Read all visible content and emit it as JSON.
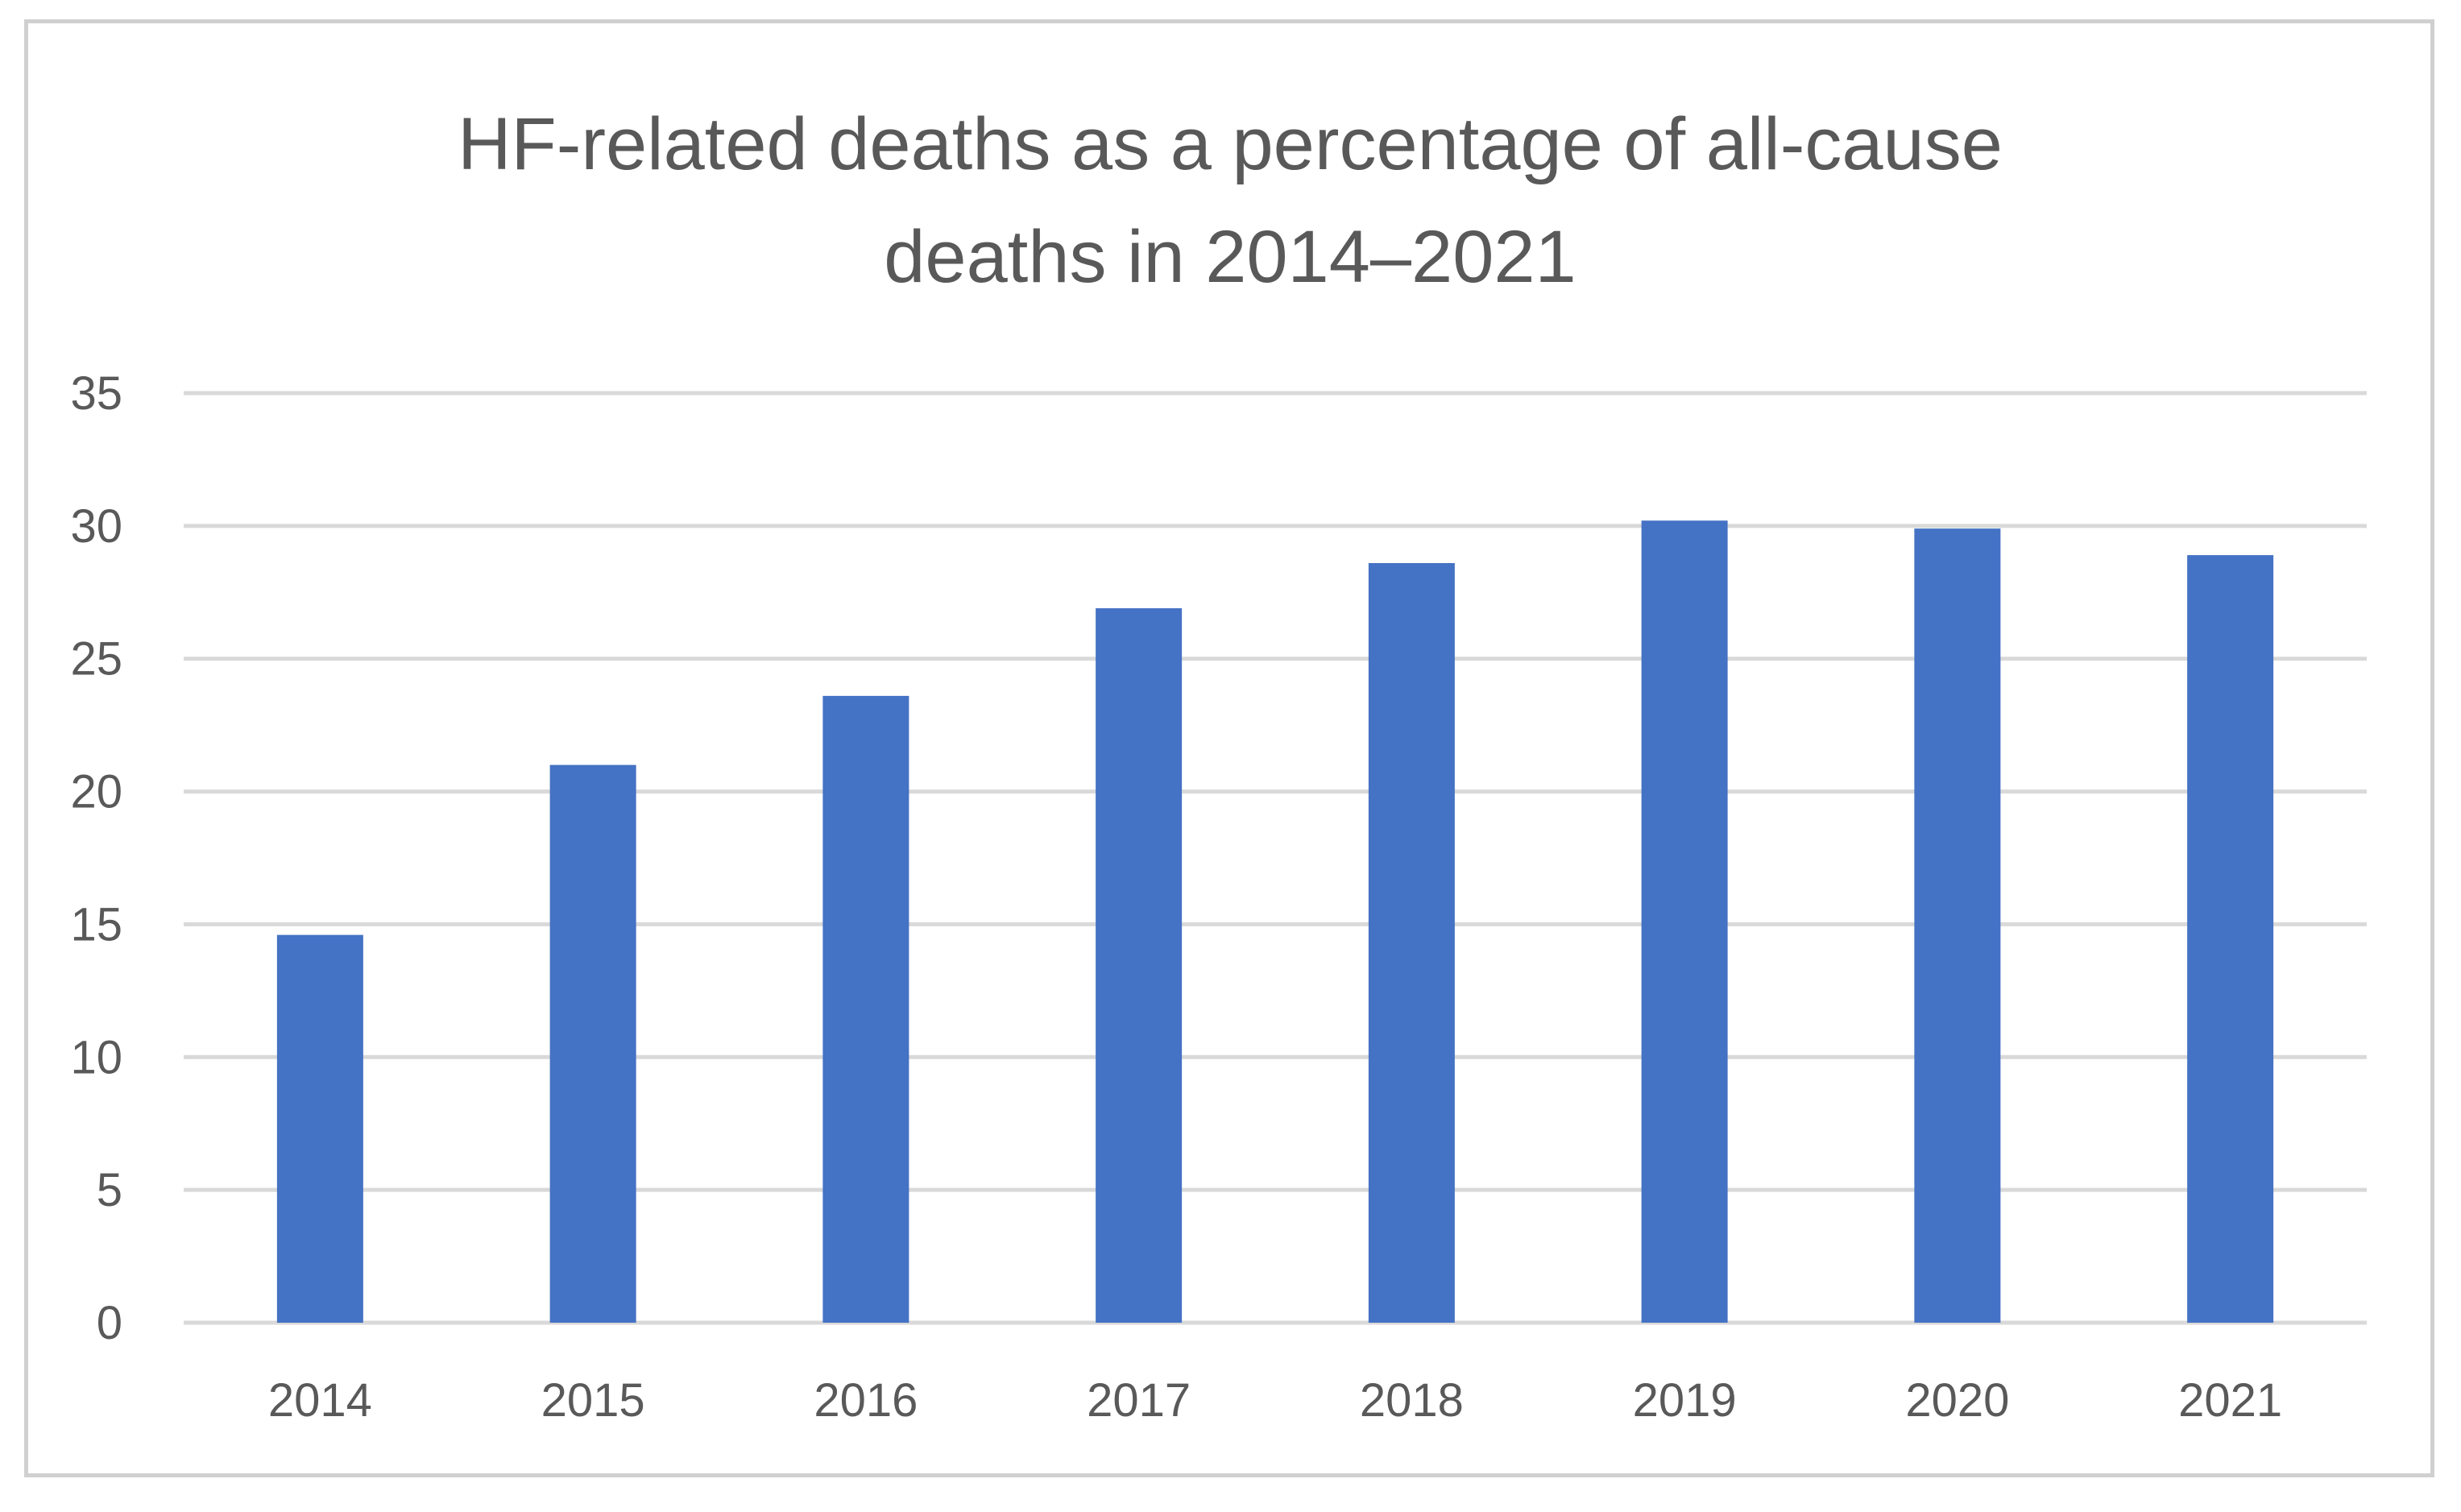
{
  "chart_data": {
    "type": "bar",
    "title_lines": [
      "HF-related deaths as a percentage of all-cause",
      "deaths in 2014–2021"
    ],
    "categories": [
      "2014",
      "2015",
      "2016",
      "2017",
      "2018",
      "2019",
      "2020",
      "2021"
    ],
    "values": [
      14.6,
      21.0,
      23.6,
      26.9,
      28.6,
      30.2,
      29.9,
      28.9
    ],
    "xlabel": "",
    "ylabel": "",
    "ylim": [
      0,
      35
    ],
    "yticks": [
      "0",
      "5",
      "10",
      "15",
      "20",
      "25",
      "30",
      "35"
    ],
    "grid": true,
    "legend": "none",
    "bar_color": "#4472C4",
    "grid_color": "#d9d9d9",
    "text_color": "#595959"
  }
}
